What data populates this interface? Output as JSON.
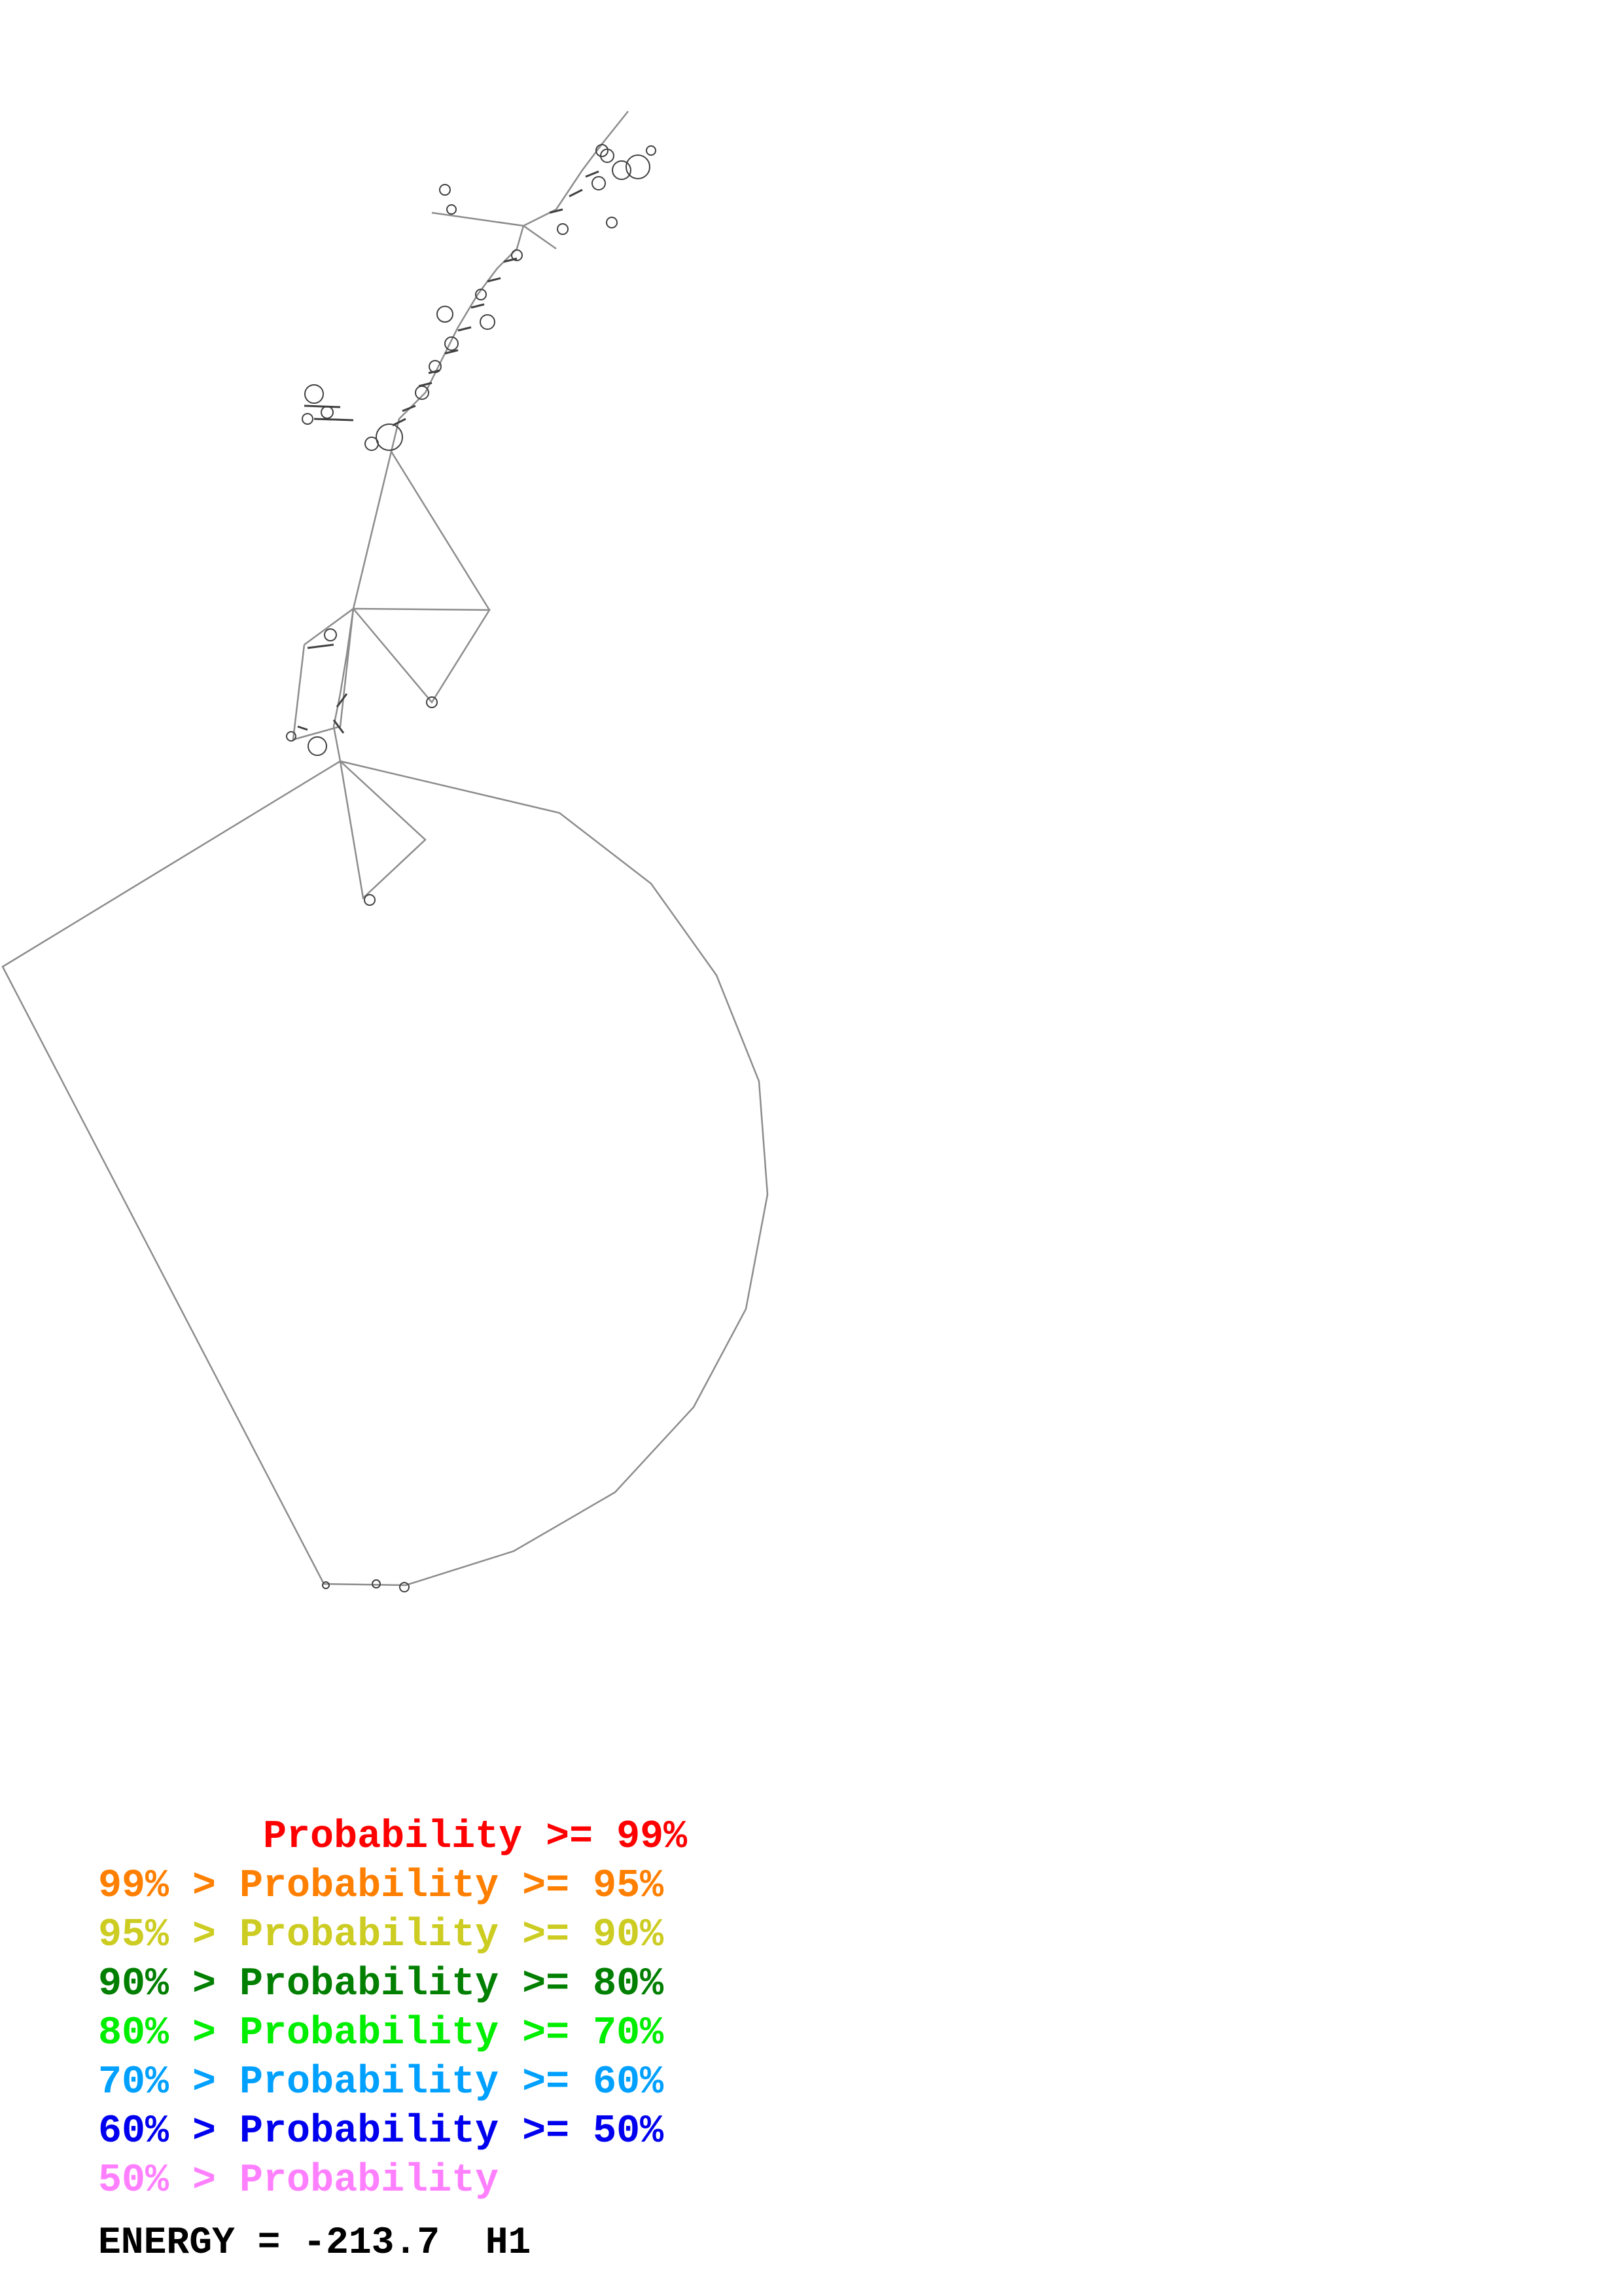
{
  "legend": [
    {
      "prefix": "       ",
      "label": "Probability >= 99%",
      "color": "#ff0000"
    },
    {
      "prefix": "99% > ",
      "label": "Probability >= 95%",
      "color": "#ff7f00"
    },
    {
      "prefix": "95% > ",
      "label": "Probability >= 90%",
      "color": "#cccc22"
    },
    {
      "prefix": "90% > ",
      "label": "Probability >= 80%",
      "color": "#007f00"
    },
    {
      "prefix": "80% > ",
      "label": "Probability >= 70%",
      "color": "#00ee00"
    },
    {
      "prefix": "70% > ",
      "label": "Probability >= 60%",
      "color": "#00a0ff"
    },
    {
      "prefix": "60% > ",
      "label": "Probability >= 50%",
      "color": "#0000ee"
    },
    {
      "prefix": "50% > ",
      "label": "Probability",
      "color": "#ff80ff"
    }
  ],
  "energy": {
    "label": "ENERGY =",
    "value": "-213.7",
    "structure_id": "H1"
  },
  "colors": {
    "backbone": "#808080",
    "helix": "#404040"
  }
}
